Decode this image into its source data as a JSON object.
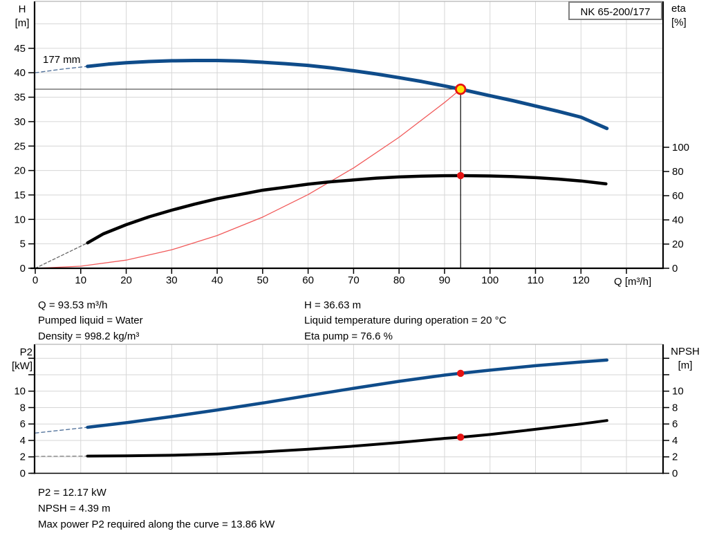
{
  "title_box": "NK 65-200/177",
  "labels": {
    "h_axis_line1": "H",
    "h_axis_line2": "[m]",
    "eta_axis_line1": "eta",
    "eta_axis_line2": "[%]",
    "q_axis": "Q [m³/h]",
    "p2_axis_line1": "P2",
    "p2_axis_line2": "[kW]",
    "npsh_axis_line1": "NPSH",
    "npsh_axis_line2": "[m]",
    "impeller": "177 mm"
  },
  "info_top": {
    "left": [
      "Q = 93.53 m³/h",
      "Pumped liquid = Water",
      "Density = 998.2 kg/m³"
    ],
    "right": [
      "H = 36.63 m",
      "Liquid temperature during operation = 20 °C",
      "Eta pump = 76.6 %"
    ]
  },
  "info_bottom": {
    "lines": [
      "P2 = 12.17 kW",
      "NPSH = 4.39 m",
      "Max power P2 required along the curve = 13.86 kW"
    ]
  },
  "colors": {
    "curve_blue": "#0f4c8a",
    "curve_black": "#000000",
    "system_red": "#f15a5a",
    "marker_red": "#e51313",
    "marker_yellow": "#ffe60a",
    "grid": "#d6d6d6",
    "border_gray": "#b4b4b4"
  },
  "operating_point": {
    "Q": 93.53,
    "H": 36.63,
    "eta": 76.6,
    "P2": 12.17,
    "NPSH": 4.39,
    "P2_max": 13.86
  },
  "chart_data": [
    {
      "id": "qh",
      "type": "line",
      "title": "NK 65-200/177",
      "xlabel": "Q [m³/h]",
      "x_axis": {
        "range": [
          0,
          137.9
        ],
        "grid_step": 10,
        "grid_max": 130,
        "ticks": [
          0,
          10,
          20,
          30,
          40,
          50,
          60,
          70,
          80,
          90,
          100,
          110,
          120,
          130
        ],
        "label_ticks": [
          0,
          10,
          20,
          30,
          40,
          50,
          60,
          70,
          80,
          90,
          100,
          110,
          120
        ]
      },
      "y_left": {
        "label": "H [m]",
        "range": [
          0,
          54.6
        ],
        "grid_step": 5,
        "grid_max": 50,
        "ticks": [
          0,
          5,
          10,
          15,
          20,
          25,
          30,
          35,
          40,
          45
        ],
        "label_ticks": [
          0,
          5,
          10,
          15,
          20,
          25,
          30,
          35,
          40,
          45
        ]
      },
      "y_right": {
        "label": "eta [%]",
        "range": [
          0,
          220.6
        ],
        "ticks": [
          0,
          20,
          40,
          60,
          80,
          100
        ],
        "label_ticks": [
          0,
          20,
          40,
          60,
          80,
          100
        ]
      },
      "series": [
        {
          "name": "system-curve",
          "axis": "left",
          "color": "#f15a5a",
          "width": 1.3,
          "points": [
            [
              0,
              0
            ],
            [
              10,
              0.42
            ],
            [
              20,
              1.67
            ],
            [
              30,
              3.77
            ],
            [
              40,
              6.7
            ],
            [
              50,
              10.47
            ],
            [
              60,
              15.08
            ],
            [
              70,
              20.52
            ],
            [
              80,
              26.8
            ],
            [
              90,
              33.92
            ],
            [
              93.53,
              36.63
            ]
          ]
        },
        {
          "name": "head-curve-dashed",
          "axis": "left",
          "color": "#54749c",
          "width": 1.4,
          "dash": "5 4",
          "points": [
            [
              0,
              40
            ],
            [
              6,
              40.75
            ],
            [
              11.5,
              41.3
            ]
          ]
        },
        {
          "name": "efficiency-dashed",
          "axis": "right",
          "color": "#666666",
          "width": 1.3,
          "dash": "4 3",
          "points": [
            [
              0,
              0
            ],
            [
              11.5,
              21
            ]
          ]
        },
        {
          "name": "efficiency-curve",
          "axis": "right",
          "color": "#000000",
          "width": 4.5,
          "points": [
            [
              11.5,
              21
            ],
            [
              15,
              28.5
            ],
            [
              20,
              36
            ],
            [
              25,
              42.5
            ],
            [
              30,
              48
            ],
            [
              35,
              53
            ],
            [
              40,
              57.5
            ],
            [
              45,
              61
            ],
            [
              50,
              64.5
            ],
            [
              55,
              67
            ],
            [
              60,
              69.5
            ],
            [
              65,
              71.5
            ],
            [
              70,
              73
            ],
            [
              75,
              74.5
            ],
            [
              80,
              75.5
            ],
            [
              85,
              76.2
            ],
            [
              90,
              76.5
            ],
            [
              93.53,
              76.6
            ],
            [
              100,
              76.3
            ],
            [
              105,
              75.8
            ],
            [
              110,
              74.9
            ],
            [
              115,
              73.7
            ],
            [
              120,
              72.2
            ],
            [
              125.5,
              69.8
            ]
          ]
        },
        {
          "name": "head-curve-177mm",
          "axis": "left",
          "color": "#0f4c8a",
          "width": 5,
          "points": [
            [
              11.5,
              41.3
            ],
            [
              16,
              41.75
            ],
            [
              20,
              42.05
            ],
            [
              25,
              42.3
            ],
            [
              30,
              42.45
            ],
            [
              35,
              42.5
            ],
            [
              40,
              42.5
            ],
            [
              45,
              42.4
            ],
            [
              50,
              42.15
            ],
            [
              55,
              41.85
            ],
            [
              60,
              41.5
            ],
            [
              65,
              41.0
            ],
            [
              70,
              40.4
            ],
            [
              75,
              39.75
            ],
            [
              80,
              39.0
            ],
            [
              85,
              38.2
            ],
            [
              90,
              37.3
            ],
            [
              93.53,
              36.63
            ],
            [
              100,
              35.3
            ],
            [
              105,
              34.3
            ],
            [
              110,
              33.2
            ],
            [
              115,
              32.1
            ],
            [
              120,
              30.9
            ],
            [
              125.7,
              28.6
            ]
          ]
        }
      ],
      "helper_lines": [
        {
          "name": "duty-head-line",
          "axis": "left",
          "color": "#333333",
          "width": 1,
          "points": [
            [
              0,
              36.63
            ],
            [
              93.53,
              36.63
            ]
          ]
        },
        {
          "name": "duty-flow-line",
          "axis": "left",
          "color": "#000000",
          "width": 1.2,
          "points": [
            [
              93.53,
              0
            ],
            [
              93.53,
              36.63
            ]
          ]
        }
      ],
      "markers": [
        {
          "name": "duty-point-marker",
          "axis": "left",
          "q": 93.53,
          "v": 36.63,
          "r": 6.8,
          "fill": "#ffe60a",
          "stroke": "#e51313",
          "stroke_width": 2.8
        },
        {
          "name": "efficiency-point-marker",
          "axis": "right",
          "q": 93.53,
          "v": 76.6,
          "r": 5.2,
          "fill": "#e51313"
        }
      ],
      "annotation": "177 mm"
    },
    {
      "id": "p2npsh",
      "type": "line",
      "title": "",
      "xlabel": "",
      "x_axis": {
        "range": [
          0,
          137.9
        ],
        "grid_step": 10,
        "grid_max": 130,
        "ticks": [],
        "label_ticks": []
      },
      "y_left": {
        "label": "P2 [kW]",
        "range": [
          0,
          15.7
        ],
        "grid_step": 2,
        "grid_max": 14,
        "ticks": [
          0,
          2,
          4,
          6,
          8,
          10,
          12,
          14
        ],
        "label_ticks": [
          0,
          2,
          4,
          6,
          8,
          10
        ]
      },
      "y_right": {
        "label": "NPSH [m]",
        "range": [
          0,
          15.7
        ],
        "ticks": [
          0,
          2,
          4,
          6,
          8,
          10,
          12,
          14
        ],
        "label_ticks": [
          0,
          2,
          4,
          6,
          8,
          10
        ]
      },
      "series": [
        {
          "name": "p2-dashed",
          "axis": "left",
          "color": "#54749c",
          "width": 1.4,
          "dash": "5 4",
          "points": [
            [
              0,
              4.9
            ],
            [
              11.5,
              5.6
            ]
          ]
        },
        {
          "name": "p2-curve",
          "axis": "left",
          "color": "#0f4c8a",
          "width": 4.5,
          "points": [
            [
              11.5,
              5.6
            ],
            [
              20,
              6.15
            ],
            [
              30,
              6.9
            ],
            [
              40,
              7.7
            ],
            [
              50,
              8.55
            ],
            [
              60,
              9.45
            ],
            [
              70,
              10.35
            ],
            [
              80,
              11.2
            ],
            [
              90,
              11.95
            ],
            [
              93.53,
              12.17
            ],
            [
              100,
              12.55
            ],
            [
              110,
              13.1
            ],
            [
              120,
              13.55
            ],
            [
              125.7,
              13.78
            ]
          ]
        },
        {
          "name": "npsh-dashed",
          "axis": "left",
          "color": "#8c8c8c",
          "width": 1.4,
          "dash": "5 4",
          "points": [
            [
              0,
              2.05
            ],
            [
              11.5,
              2.1
            ]
          ]
        },
        {
          "name": "npsh-curve",
          "axis": "left",
          "color": "#000000",
          "width": 4,
          "points": [
            [
              11.5,
              2.1
            ],
            [
              20,
              2.12
            ],
            [
              30,
              2.2
            ],
            [
              40,
              2.35
            ],
            [
              50,
              2.6
            ],
            [
              60,
              2.92
            ],
            [
              70,
              3.3
            ],
            [
              80,
              3.75
            ],
            [
              90,
              4.25
            ],
            [
              93.53,
              4.39
            ],
            [
              100,
              4.72
            ],
            [
              110,
              5.35
            ],
            [
              120,
              6.0
            ],
            [
              125.7,
              6.42
            ]
          ]
        }
      ],
      "helper_lines": [],
      "markers": [
        {
          "name": "p2-point-marker",
          "axis": "left",
          "q": 93.53,
          "v": 12.17,
          "r": 5.2,
          "fill": "#e51313"
        },
        {
          "name": "npsh-point-marker",
          "axis": "left",
          "q": 93.53,
          "v": 4.39,
          "r": 5.2,
          "fill": "#e51313"
        }
      ],
      "annotation": ""
    }
  ]
}
